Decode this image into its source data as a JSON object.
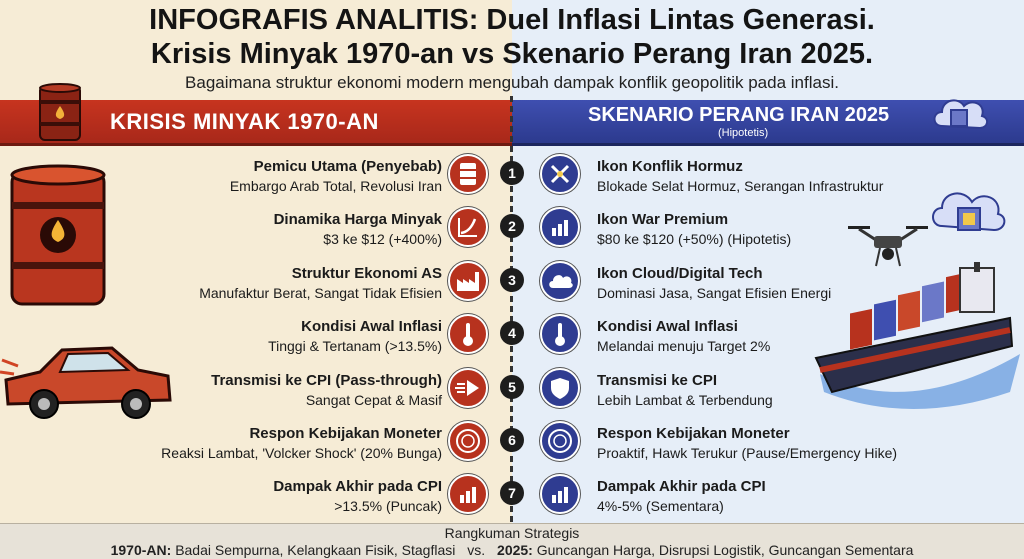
{
  "header": {
    "title_line1": "INFOGRAFIS ANALITIS: Duel Inflasi Lintas Generasi.",
    "title_line2": "Krisis Minyak 1970-an vs Skenario Perang Iran 2025.",
    "subtitle": "Bagaimana struktur ekonomi modern mengubah dampak konflik geopolitik pada inflasi."
  },
  "left": {
    "banner": "KRISIS MINYAK 1970-AN",
    "accent": "#b7321e"
  },
  "right": {
    "banner": "SKENARIO PERANG IRAN 2025",
    "banner_sub": "(Hipotetis)",
    "accent": "#2f3c91"
  },
  "rows": [
    {
      "num": "1",
      "left_title": "Pemicu Utama (Penyebab)",
      "left_value": "Embargo Arab Total, Revolusi Iran",
      "left_icon": "oil-barrel-icon",
      "right_title": "Ikon Konflik Hormuz",
      "right_value": "Blokade Selat Hormuz, Serangan Infrastruktur",
      "right_icon": "crossed-swords-icon"
    },
    {
      "num": "2",
      "left_title": "Dinamika Harga Minyak",
      "left_value": "$3 ke $12 (+400%)",
      "left_icon": "rising-chart-icon",
      "right_title": "Ikon War Premium",
      "right_value": "$80 ke $120 (+50%) (Hipotetis)",
      "right_icon": "bar-chart-icon"
    },
    {
      "num": "3",
      "left_title": "Struktur Ekonomi AS",
      "left_value": "Manufaktur Berat, Sangat Tidak Efisien",
      "left_icon": "factory-icon",
      "right_title": "Ikon Cloud/Digital Tech",
      "right_value": "Dominasi Jasa, Sangat Efisien Energi",
      "right_icon": "cloud-icon"
    },
    {
      "num": "4",
      "left_title": "Kondisi Awal Inflasi",
      "left_value": "Tinggi & Tertanam (>13.5%)",
      "left_icon": "thermometer-icon",
      "right_title": "Kondisi Awal Inflasi",
      "right_value": "Melandai menuju Target 2%",
      "right_icon": "thermometer-icon"
    },
    {
      "num": "5",
      "left_title": "Transmisi ke CPI (Pass-through)",
      "left_value": "Sangat Cepat & Masif",
      "left_icon": "fast-arrow-icon",
      "right_title": "Transmisi ke CPI",
      "right_value": "Lebih Lambat & Terbendung",
      "right_icon": "shield-icon"
    },
    {
      "num": "6",
      "left_title": "Respon Kebijakan Moneter",
      "left_value": "Reaksi Lambat, 'Volcker Shock' (20% Bunga)",
      "left_icon": "seal-icon",
      "right_title": "Respon Kebijakan Moneter",
      "right_value": "Proaktif, Hawk Terukur (Pause/Emergency Hike)",
      "right_icon": "seal-icon"
    },
    {
      "num": "7",
      "left_title": "Dampak Akhir pada CPI",
      "left_value": ">13.5% (Puncak)",
      "left_icon": "bar-chart-icon",
      "right_title": "Dampak Akhir pada CPI",
      "right_value": "4%-5% (Sementara)",
      "right_icon": "bar-chart-icon"
    }
  ],
  "footer": {
    "title": "Rangkuman Strategis",
    "left_label": "1970-AN:",
    "left_text": "Badai Sempurna, Kelangkaan Fisik, Stagflasi",
    "vs": "vs.",
    "right_label": "2025:",
    "right_text": "Guncangan Harga, Disrupsi Logistik, Guncangan Sementara"
  }
}
